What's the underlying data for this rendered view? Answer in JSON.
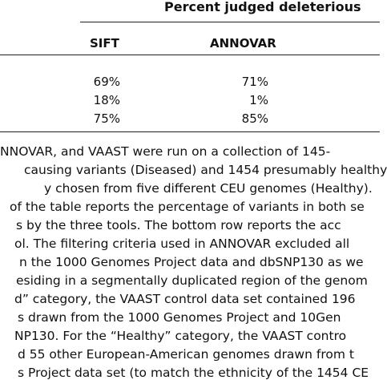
{
  "table": {
    "group_header": "Percent judged deleterious",
    "columns": [
      "SIFT",
      "ANNOVAR"
    ],
    "rows": [
      [
        "69%",
        "71%"
      ],
      [
        "18%",
        "1%"
      ],
      [
        "75%",
        "85%"
      ]
    ]
  },
  "caption_lines": [
    "NNOVAR, and VAAST were run on a collection of 145-",
    "causing variants (Diseased) and 1454 presumably healthy",
    "y chosen from five different CEU genomes (Healthy).",
    "of the table reports the percentage of variants in both se",
    "s by the three tools. The bottom row reports the acc",
    "ol. The filtering criteria used in ANNOVAR excluded all",
    "n the 1000 Genomes Project data and dbSNP130 as we",
    "esiding in a segmentally duplicated region of the genom",
    "d” category, the VAAST control data set contained 196",
    "s drawn from the 1000 Genomes Project and 10Gen",
    "NP130. For the “Healthy” category, the VAAST contro",
    "d 55 other European-American genomes drawn from t",
    "s Project data set (to match the ethnicity of the 1454 CE"
  ]
}
